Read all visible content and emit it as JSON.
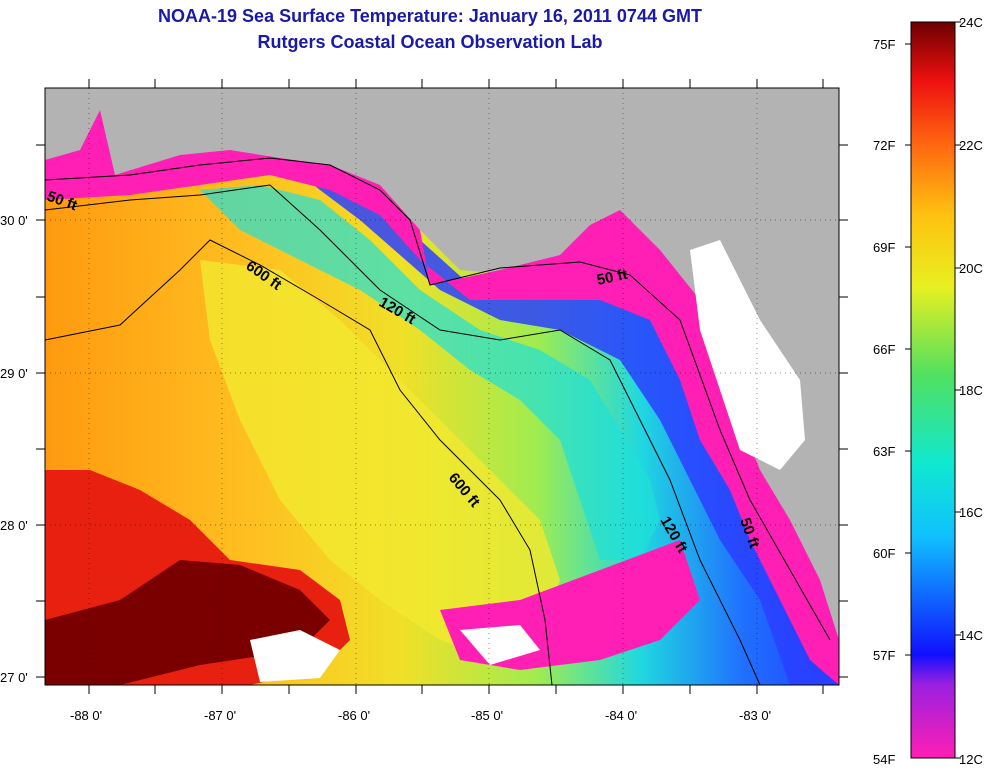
{
  "title": {
    "line1": "NOAA-19 Sea Surface Temperature:  January 16, 2011 0744 GMT",
    "line2": "Rutgers Coastal Ocean Observation Lab"
  },
  "map": {
    "lat_labels": [
      "30 0'",
      "29 0'",
      "28 0'",
      "27 0'"
    ],
    "lon_labels": [
      "-88 0'",
      "-87 0'",
      "-86 0'",
      "-85 0'",
      "-84 0'",
      "-83 0'"
    ],
    "depth_labels": [
      "50 ft",
      "600 ft",
      "120 ft",
      "50 ft",
      "600 ft",
      "120 ft",
      "50 ft"
    ],
    "colors": {
      "land": "#b3b3b3",
      "cloud": "#ffffff",
      "cold": "#ff1fb4",
      "warm": "#7a0000"
    }
  },
  "colorbar": {
    "fahrenheit_labels": [
      "75F",
      "72F",
      "69F",
      "66F",
      "63F",
      "60F",
      "57F",
      "54F"
    ],
    "celsius_labels": [
      "24C",
      "22C",
      "20C",
      "18C",
      "16C",
      "14C",
      "12C"
    ],
    "range_c": [
      12,
      24
    ],
    "range_f": [
      54,
      75
    ]
  }
}
